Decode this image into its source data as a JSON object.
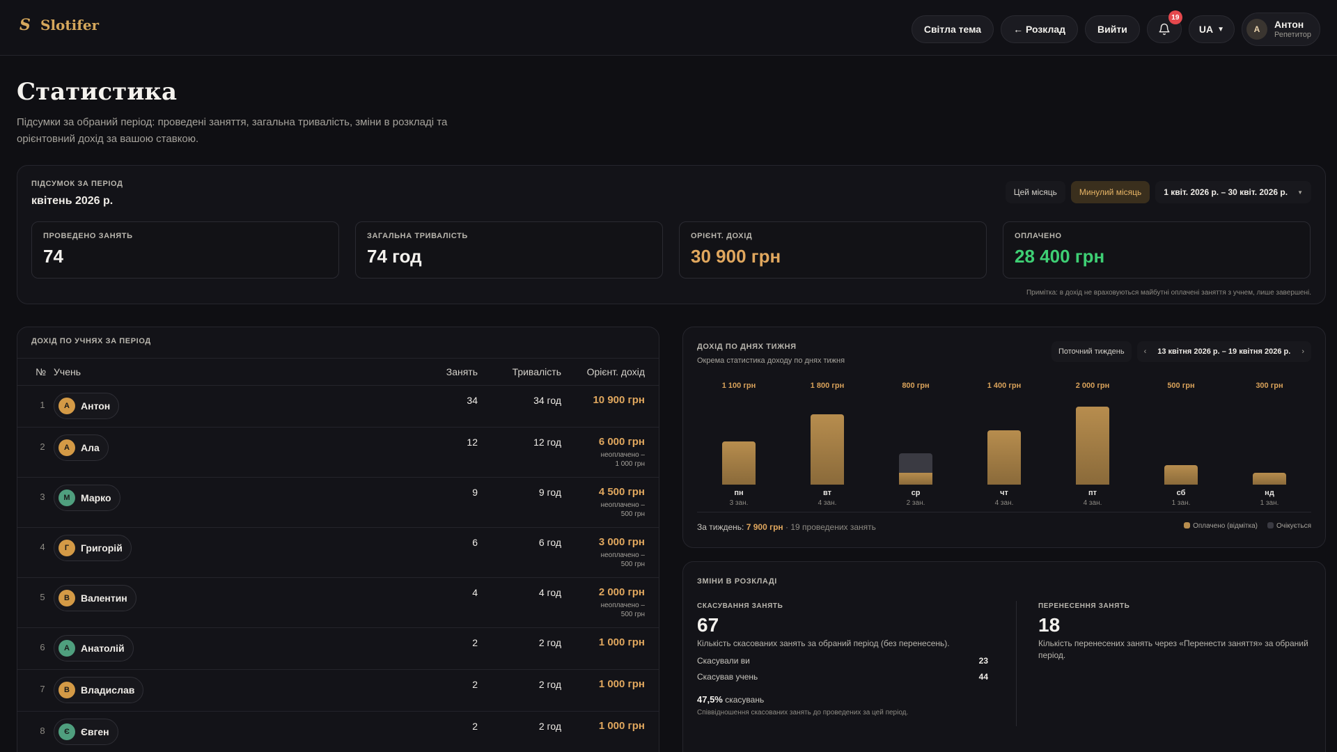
{
  "app": {
    "logo_glyph": "S",
    "name": "Slotifer"
  },
  "nav": {
    "theme": "Світла тема",
    "schedule": "← Розклад",
    "logout": "Вийти",
    "notifications": "19",
    "lang": "UA",
    "user_initial": "А",
    "user_name": "Антон",
    "user_role": "Репетитор"
  },
  "page": {
    "title": "Статистика",
    "subtitle": "Підсумки за обраний період: проведені заняття, загальна тривалість, зміни в розкладі та орієнтовний дохід за вашою ставкою."
  },
  "summary": {
    "label": "Підсумок за період",
    "period": "квітень 2026 р.",
    "tabs": [
      "Цей місяць",
      "Минулий місяць"
    ],
    "active_tab": "Минулий місяць",
    "range": "1 квіт. 2026 р. – 30 квіт. 2026 р.",
    "stats": [
      {
        "label": "Проведено занять",
        "value": "74"
      },
      {
        "label": "Загальна тривалість",
        "value": "74 год"
      },
      {
        "label": "Орієнт. дохід",
        "value": "30 900 грн"
      },
      {
        "label": "Оплачено",
        "value": "28 400 грн"
      }
    ],
    "note": "Примітка: в дохід не враховуються майбутні оплачені заняття з учнем, лише завершені."
  },
  "students": {
    "label": "Дохід по учнях за період",
    "columns": {
      "num": "№",
      "name": "Учень",
      "count": "Занять",
      "duration": "Тривалість",
      "income": "Орієнт. дохід"
    },
    "rows": [
      {
        "num": "1",
        "initial": "А",
        "name": "Антон",
        "count": "34",
        "duration": "34 год",
        "income": "10 900 грн",
        "unpaid_a": "",
        "unpaid_b": "",
        "avatar": "gold"
      },
      {
        "num": "2",
        "initial": "А",
        "name": "Ала",
        "count": "12",
        "duration": "12 год",
        "income": "6 000 грн",
        "unpaid_a": "неоплачено –",
        "unpaid_b": "1 000 грн",
        "avatar": "gold"
      },
      {
        "num": "3",
        "initial": "М",
        "name": "Марко",
        "count": "9",
        "duration": "9 год",
        "income": "4 500 грн",
        "unpaid_a": "неоплачено –",
        "unpaid_b": "500 грн",
        "avatar": "green"
      },
      {
        "num": "4",
        "initial": "Г",
        "name": "Григорій",
        "count": "6",
        "duration": "6 год",
        "income": "3 000 грн",
        "unpaid_a": "неоплачено –",
        "unpaid_b": "500 грн",
        "avatar": "gold"
      },
      {
        "num": "5",
        "initial": "В",
        "name": "Валентин",
        "count": "4",
        "duration": "4 год",
        "income": "2 000 грн",
        "unpaid_a": "неоплачено –",
        "unpaid_b": "500 грн",
        "avatar": "gold"
      },
      {
        "num": "6",
        "initial": "А",
        "name": "Анатолій",
        "count": "2",
        "duration": "2 год",
        "income": "1 000 грн",
        "unpaid_a": "",
        "unpaid_b": "",
        "avatar": "green"
      },
      {
        "num": "7",
        "initial": "В",
        "name": "Владислав",
        "count": "2",
        "duration": "2 год",
        "income": "1 000 грн",
        "unpaid_a": "",
        "unpaid_b": "",
        "avatar": "gold"
      },
      {
        "num": "8",
        "initial": "Є",
        "name": "Євген",
        "count": "2",
        "duration": "2 год",
        "income": "1 000 грн",
        "unpaid_a": "",
        "unpaid_b": "",
        "avatar": "green"
      }
    ]
  },
  "weekday": {
    "label": "Дохід по днях тижня",
    "subtitle": "Окрема статистика доходу по днях тижня",
    "week_btn": "Поточний тиждень",
    "prev": "‹",
    "next": "›",
    "range": "13 квітня 2026 р. – 19 квітня 2026 р.",
    "total_prefix": "За тиждень:",
    "total": "7 900 грн",
    "total_suffix": "· 19 проведених занять",
    "legend_paid": "Оплачено (відмітка)",
    "legend_pending": "Очікується",
    "colors": {
      "paid": "#b78d4e",
      "pending": "#3a3a42"
    }
  },
  "chart_data": {
    "type": "bar",
    "categories": [
      "пн",
      "вт",
      "ср",
      "чт",
      "пт",
      "сб",
      "нд"
    ],
    "values": [
      1100,
      1800,
      800,
      1400,
      2000,
      500,
      300
    ],
    "value_labels": [
      "1 100 грн",
      "1 800 грн",
      "800 грн",
      "1 400 грн",
      "2 000 грн",
      "500 грн",
      "300 грн"
    ],
    "paid_values": [
      1100,
      1800,
      300,
      1400,
      2000,
      500,
      300
    ],
    "pending_values": [
      0,
      0,
      500,
      0,
      0,
      0,
      0
    ],
    "lesson_counts": [
      "3 зан.",
      "4 зан.",
      "2 зан.",
      "4 зан.",
      "4 зан.",
      "1 зан.",
      "1 зан."
    ],
    "ylim": [
      0,
      2000
    ],
    "grid": false
  },
  "changes": {
    "label": "Зміни в розкладі",
    "cancel_label": "Скасування занять",
    "cancel_value": "67",
    "cancel_desc": "Кількість скасованих занять за обраний період (без перенесень).",
    "you_cancelled_label": "Скасували ви",
    "you_cancelled": "23",
    "student_cancelled_label": "Скасував учень",
    "student_cancelled": "44",
    "ratio": "47,5%",
    "ratio_suffix": "скасувань",
    "ratio_note": "Співвідношення скасованих занять до проведених за цей період.",
    "resched_label": "Перенесення занять",
    "resched_value": "18",
    "resched_desc": "Кількість перенесених занять через «Перенести заняття» за обраний період."
  }
}
